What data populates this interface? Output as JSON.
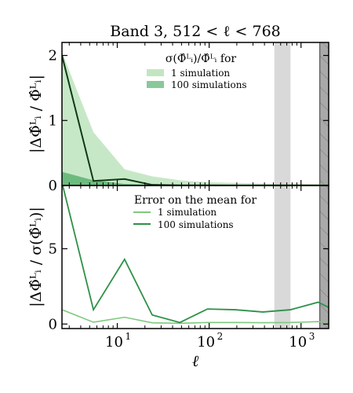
{
  "chart_data": {
    "title": "Band 3, 512 < ℓ < 768",
    "xlabel": "ℓ",
    "x_scale": "log",
    "xlim": [
      2.5,
      2000
    ],
    "x_ticks": [
      {
        "value": 10,
        "base": "10",
        "exp": "1"
      },
      {
        "value": 100,
        "base": "10",
        "exp": "2"
      },
      {
        "value": 1000,
        "base": "10",
        "exp": "3"
      }
    ],
    "shaded_bands": [
      {
        "x0": 512,
        "x1": 768,
        "style": "light-gray"
      },
      {
        "x0": 1600,
        "x1": 2000,
        "style": "dark-gray-hatched"
      }
    ],
    "panels": [
      {
        "type": "area+line",
        "ylabel": "|ΔΦ̂ᴸᵢ / Φ̂ᴸᵢ|",
        "ylim": [
          0,
          2.2
        ],
        "y_ticks": [
          0,
          1,
          2
        ],
        "legend": {
          "title": "σ(Φ̂ᴸᵢ)/Φ̂ᴸᵢ for",
          "entries": [
            "1 simulation",
            "100 simulations"
          ]
        },
        "x": [
          2.5,
          5.5,
          12,
          24,
          48,
          96,
          192,
          384,
          768,
          1536,
          2000
        ],
        "series": [
          {
            "name": "1 simulation",
            "kind": "area",
            "color": "#8fd18f",
            "values": [
              2.05,
              0.82,
              0.25,
              0.14,
              0.08,
              0.05,
              0.04,
              0.03,
              0.025,
              0.02,
              0.02
            ]
          },
          {
            "name": "100 simulations",
            "kind": "area",
            "color": "#3aa357",
            "values": [
              0.21,
              0.08,
              0.025,
              0.014,
              0.008,
              0.005,
              0.004,
              0.003,
              0.0025,
              0.002,
              0.002
            ]
          },
          {
            "name": "|ΔΦ̂/Φ̂|",
            "kind": "line",
            "color": "#0d3b12",
            "values": [
              2.0,
              0.07,
              0.1,
              0.01,
              0.003,
              0.003,
              0.002,
              0.002,
              0.002,
              0.001,
              0.001
            ]
          }
        ]
      },
      {
        "type": "line",
        "ylabel": "|ΔΦ̂ᴸᵢ / σ(Φ̂ᴸᵢ)|",
        "ylim": [
          -0.3,
          9.2
        ],
        "y_ticks": [
          0,
          5
        ],
        "legend": {
          "title": "Error on the mean for",
          "entries": [
            "1 simulation",
            "100 simulations"
          ]
        },
        "x": [
          2.5,
          5.5,
          12,
          24,
          48,
          96,
          192,
          384,
          768,
          1536,
          2000
        ],
        "series": [
          {
            "name": "1 simulation",
            "color": "#7ec97e",
            "values": [
              0.95,
              0.12,
              0.45,
              0.08,
              0.05,
              0.1,
              0.1,
              0.09,
              0.1,
              0.16,
              0.14
            ]
          },
          {
            "name": "100 simulations",
            "color": "#2e9147",
            "values": [
              9.4,
              0.95,
              4.3,
              0.6,
              0.1,
              1.0,
              0.95,
              0.8,
              0.95,
              1.45,
              1.1
            ]
          }
        ]
      }
    ]
  }
}
